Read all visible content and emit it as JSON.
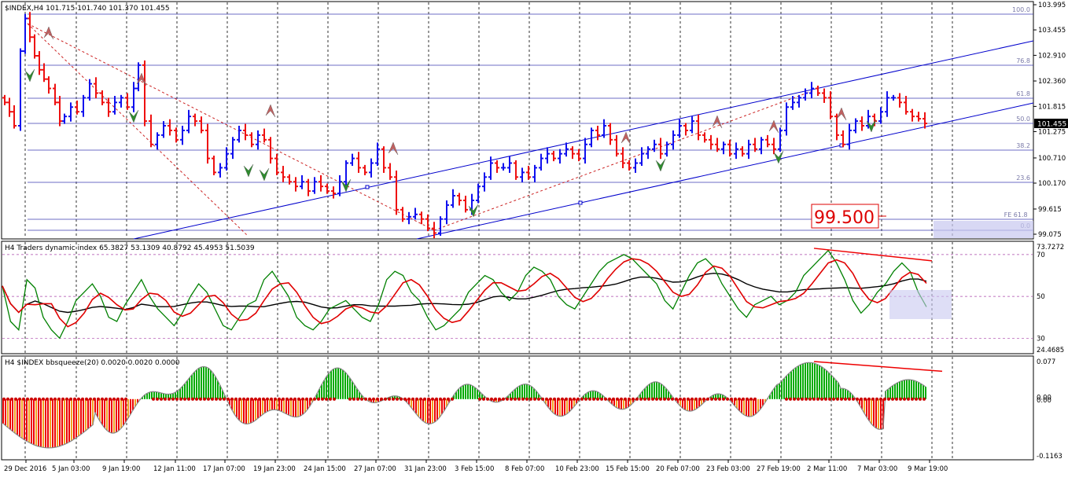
{
  "window": {
    "main_title": "$INDEX,H4  101.715 101.740 101.370 101.455",
    "indicator1_title": "H4 Traders dynamic index 65.3827 53.1309 40.8792 45.4953 51.5039",
    "indicator2_title": "H4 $INDEX bbsqueeze(20) 0.0020 0.0020 0.0000"
  },
  "price_axis": {
    "ticks": [
      "103.995",
      "103.455",
      "102.910",
      "102.360",
      "101.815",
      "101.275",
      "100.710",
      "100.170",
      "99.615",
      "99.075"
    ],
    "current_price": "101.455"
  },
  "fib_levels": [
    "100.0",
    "76.8",
    "61.8",
    "50.0",
    "38.2",
    "23.6",
    "FE 61.8",
    "0.0"
  ],
  "price_box_label": "99.500",
  "tdi_axis": {
    "ticks": [
      "73.7272",
      "70",
      "50",
      "30",
      "24.4685"
    ]
  },
  "bbs_axis": {
    "ticks": [
      "0.077",
      "0.00",
      "0.00",
      "-0.1163"
    ]
  },
  "time_axis": {
    "labels": [
      "29 Dec 2016",
      "5 Jan 03:00",
      "9 Jan 19:00",
      "12 Jan 11:00",
      "17 Jan 07:00",
      "19 Jan 23:00",
      "24 Jan 15:00",
      "27 Jan 07:00",
      "31 Jan 23:00",
      "3 Feb 15:00",
      "8 Feb 07:00",
      "10 Feb 23:00",
      "15 Feb 15:00",
      "20 Feb 07:00",
      "23 Feb 03:00",
      "27 Feb 19:00",
      "2 Mar 11:00",
      "7 Mar 03:00",
      "9 Mar 19:00"
    ]
  },
  "colors": {
    "bull_bar": "#1010ee",
    "bear_bar": "#ee1010",
    "channel": "#0000cc",
    "fib_line": "#3b3bb0",
    "tdi_green": "#008000",
    "tdi_red": "#e00000",
    "tdi_black": "#000000",
    "hist_green": "#00aa00",
    "hist_red": "#ee0000",
    "hist_orange": "#f0a020",
    "price_box": "#dd0000",
    "current_price_bg": "#000000"
  },
  "chart_data": [
    {
      "type": "ohlc",
      "name": "$INDEX,H4",
      "values_close_approx": [
        101.8,
        101.6,
        103.1,
        103.7,
        103.4,
        102.7,
        102.2,
        101.7,
        101.9,
        102.3,
        101.8,
        101.9,
        102.7,
        101.2,
        100.9,
        100.4,
        100.7,
        101.4,
        101.5,
        100.2,
        100.6,
        101.1,
        101.3,
        100.7,
        100.2,
        100.3,
        100.1,
        100.0,
        100.5,
        100.7,
        100.4,
        99.8,
        99.2,
        99.3,
        99.9,
        100.3,
        100.5,
        100.9,
        101.0,
        100.7,
        100.5,
        100.6,
        100.9,
        101.1,
        101.3,
        100.9,
        100.5,
        100.9,
        101.3,
        101.5,
        101.4,
        101.1,
        100.9,
        101.1,
        101.6,
        101.2,
        101.7,
        102.0,
        102.2,
        101.5,
        101.2,
        101.6,
        101.9,
        102.0,
        101.7,
        101.4
      ],
      "ylim": [
        99.075,
        103.995
      ]
    },
    {
      "type": "line",
      "name": "Traders dynamic index",
      "series_names": [
        "green",
        "red",
        "black"
      ],
      "ylim": [
        24.4685,
        73.7272
      ]
    },
    {
      "type": "bar",
      "name": "bbsqueeze(20)",
      "ylim": [
        -0.1163,
        0.077
      ]
    }
  ]
}
